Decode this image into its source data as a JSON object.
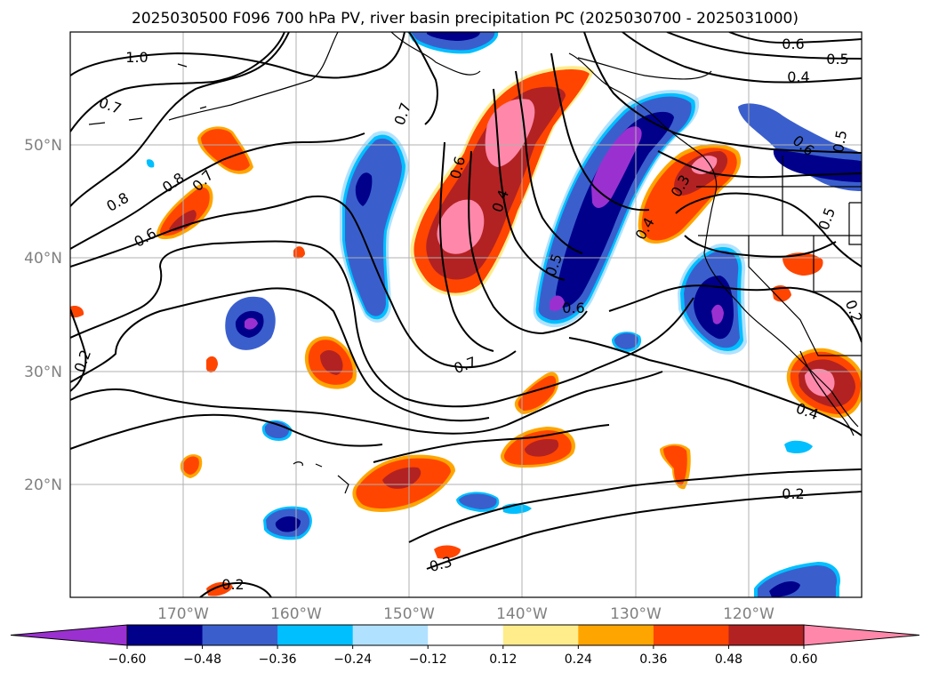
{
  "title": "2025030500 F096 700 hPa PV, river basin precipitation PC (2025030700 - 2025031000)",
  "lat_labels": [
    "50°N",
    "40°N",
    "30°N",
    "20°N"
  ],
  "lon_labels": [
    "170°W",
    "160°W",
    "150°W",
    "140°W",
    "130°W",
    "120°W"
  ],
  "contour_labels": [
    "1.0",
    "0.7",
    "0.8",
    "0.7",
    "0.8",
    "0.6",
    "0.7",
    "0.6",
    "0.4",
    "0.5",
    "0.6",
    "0.7",
    "0.2",
    "0.4",
    "0.3",
    "0.6",
    "0.5",
    "0.4",
    "0.5",
    "0.2",
    "0.4",
    "0.2",
    "0.3",
    "0.2",
    "0.6",
    "0.5"
  ],
  "colorbar": {
    "ticks": [
      "−0.60",
      "−0.48",
      "−0.36",
      "−0.24",
      "−0.12",
      "0.12",
      "0.24",
      "0.36",
      "0.48",
      "0.60"
    ],
    "colors": [
      "#9b30d0",
      "#00008b",
      "#3a5fcd",
      "#00bfff",
      "#b0e2ff",
      "#ffffff",
      "#ffec8b",
      "#ffa500",
      "#ff4500",
      "#b22222",
      "#ff88aa",
      "#ff88aa"
    ],
    "extend": "both"
  },
  "colors": {
    "pos_low": "#ffec8b",
    "pos_mid": "#ffa500",
    "pos_high": "#ff4500",
    "pos_higher": "#b22222",
    "pos_max": "#ff88aa",
    "neg_low": "#b0e2ff",
    "neg_mid": "#00bfff",
    "neg_high": "#3a5fcd",
    "neg_higher": "#00008b",
    "neg_max": "#9b30d0"
  }
}
